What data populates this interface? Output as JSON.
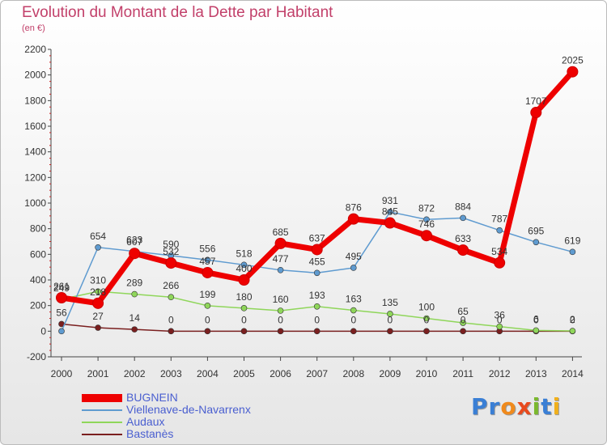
{
  "title": "Evolution du Montant de la Dette par Habitant",
  "subtitle": "(en €)",
  "brand": {
    "text": "Proxiti",
    "letters": [
      "P",
      "r",
      "o",
      "x",
      "i",
      "t",
      "i"
    ],
    "colors": [
      "#3a7fd5",
      "#3a7fd5",
      "#f08a1c",
      "#e84a1e",
      "#7bb82e",
      "#3a7fd5",
      "#f0b01c"
    ]
  },
  "chart_data": {
    "type": "line",
    "x": [
      "2000",
      "2001",
      "2002",
      "2003",
      "2004",
      "2005",
      "2006",
      "2007",
      "2008",
      "2009",
      "2010",
      "2011",
      "2012",
      "2013",
      "2014"
    ],
    "ylim": [
      -200,
      2200
    ],
    "yticks": [
      -200,
      0,
      200,
      400,
      600,
      800,
      1000,
      1200,
      1400,
      1600,
      1800,
      2000,
      2200
    ],
    "grid": false,
    "legend_position": "bottom-left",
    "series": [
      {
        "name": "Bastanès",
        "color": "#7a1f1f",
        "width": 1.5,
        "values": [
          56,
          27,
          14,
          0,
          0,
          0,
          0,
          0,
          0,
          0,
          0,
          0,
          0,
          0,
          0
        ],
        "labels": [
          "56",
          "27",
          "14",
          "0",
          "0",
          "0",
          "0",
          "0",
          "0",
          "0",
          "0",
          "0",
          "0",
          "0",
          "0"
        ]
      },
      {
        "name": "Audaux",
        "color": "#8fd65a",
        "width": 1.5,
        "values": [
          249,
          310,
          289,
          266,
          199,
          180,
          160,
          193,
          163,
          135,
          100,
          65,
          36,
          6,
          2
        ],
        "labels": [
          "249",
          "310",
          "289",
          "266",
          "199",
          "180",
          "160",
          "193",
          "163",
          "135",
          "100",
          "65",
          "36",
          "6",
          "2"
        ]
      },
      {
        "name": "Viellenave-de-Navarrenx",
        "color": "#5f9bd0",
        "width": 1.5,
        "values": [
          0,
          654,
          623,
          590,
          556,
          518,
          477,
          455,
          495,
          931,
          872,
          884,
          787,
          695,
          619
        ],
        "labels": [
          "",
          "654",
          "623",
          "590",
          "556",
          "518",
          "477",
          "455",
          "495",
          "931",
          "872",
          "884",
          "787",
          "695",
          "619"
        ]
      },
      {
        "name": "BUGNEIN",
        "color": "#ee0000",
        "width": 7,
        "values": [
          261,
          218,
          607,
          532,
          457,
          400,
          685,
          637,
          876,
          845,
          746,
          633,
          534,
          1707,
          2025
        ],
        "labels": [
          "261",
          "218",
          "607",
          "532",
          "457",
          "400",
          "685",
          "637",
          "876",
          "845",
          "746",
          "633",
          "534",
          "1707",
          "2025"
        ]
      }
    ],
    "legend_order": [
      "BUGNEIN",
      "Viellenave-de-Navarrenx",
      "Audaux",
      "Bastanès"
    ]
  }
}
